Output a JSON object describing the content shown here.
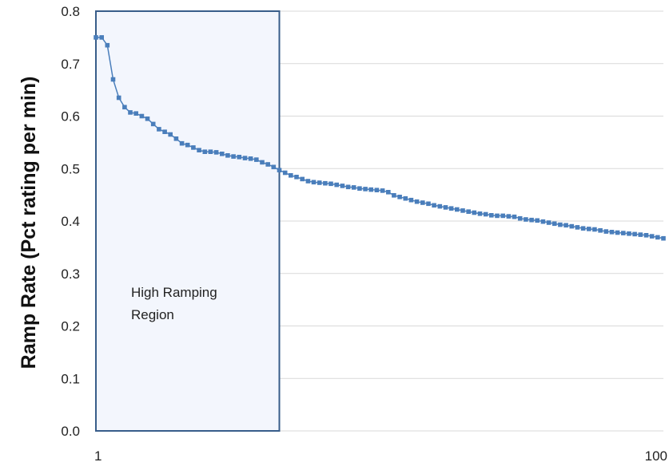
{
  "chart_data": {
    "type": "line",
    "title": "",
    "xlabel": "",
    "ylabel": "Ramp Rate (Pct rating per min)",
    "xlim": [
      1,
      100
    ],
    "ylim": [
      0,
      0.8
    ],
    "y_ticks": [
      "0.0",
      "0.1",
      "0.2",
      "0.3",
      "0.4",
      "0.5",
      "0.6",
      "0.7",
      "0.8"
    ],
    "x_ticks": [
      {
        "value": 1,
        "label": "1"
      },
      {
        "value": 100,
        "label": "100"
      }
    ],
    "grid": "horizontal",
    "legend": "none",
    "annotation": {
      "lines": [
        "High Ramping",
        "Region"
      ],
      "x_range": [
        1,
        33
      ]
    },
    "colors": {
      "series": "#4a7ebb",
      "region_fill": "#f3f6fd",
      "region_stroke": "#385d8a",
      "grid": "#d9d9d9"
    },
    "series": [
      {
        "values": [
          0.75,
          0.75,
          0.735,
          0.67,
          0.635,
          0.617,
          0.607,
          0.605,
          0.6,
          0.595,
          0.585,
          0.575,
          0.57,
          0.565,
          0.557,
          0.548,
          0.545,
          0.54,
          0.535,
          0.532,
          0.532,
          0.531,
          0.528,
          0.525,
          0.523,
          0.522,
          0.52,
          0.519,
          0.517,
          0.512,
          0.508,
          0.503,
          0.497,
          0.492,
          0.487,
          0.484,
          0.48,
          0.476,
          0.474,
          0.473,
          0.472,
          0.471,
          0.469,
          0.467,
          0.465,
          0.464,
          0.462,
          0.461,
          0.46,
          0.459,
          0.458,
          0.455,
          0.449,
          0.446,
          0.443,
          0.44,
          0.437,
          0.435,
          0.433,
          0.43,
          0.428,
          0.426,
          0.424,
          0.422,
          0.42,
          0.418,
          0.416,
          0.414,
          0.413,
          0.411,
          0.41,
          0.41,
          0.409,
          0.408,
          0.405,
          0.403,
          0.402,
          0.401,
          0.399,
          0.397,
          0.395,
          0.393,
          0.392,
          0.39,
          0.388,
          0.386,
          0.385,
          0.384,
          0.382,
          0.38,
          0.379,
          0.378,
          0.377,
          0.376,
          0.375,
          0.374,
          0.373,
          0.371,
          0.369,
          0.367
        ]
      }
    ]
  }
}
